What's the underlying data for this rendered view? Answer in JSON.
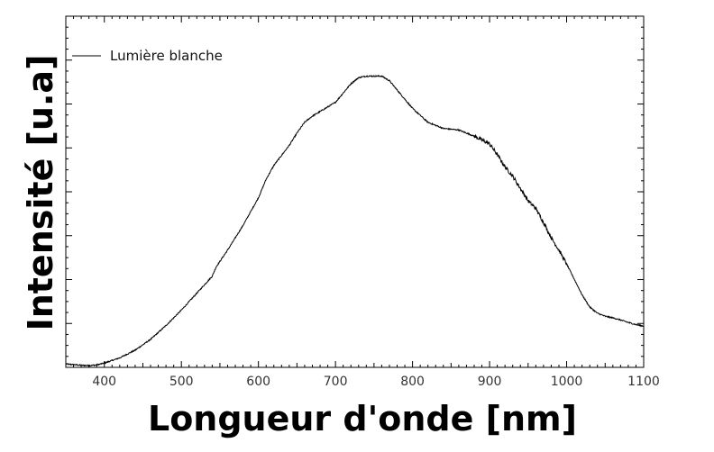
{
  "chart_data": {
    "type": "line",
    "title": "",
    "xlabel": "Longueur d'onde [nm]",
    "ylabel": "Intensité [u.a]",
    "xlim": [
      350,
      1100
    ],
    "ylim": [
      0,
      1
    ],
    "x_ticks": [
      400,
      500,
      600,
      700,
      800,
      900,
      1000,
      1100
    ],
    "y_tick_labels_shown": false,
    "grid": false,
    "legend": "top-left",
    "series": [
      {
        "name": "Lumière blanche",
        "color": "#000000",
        "x": [
          350,
          360,
          370,
          380,
          390,
          400,
          420,
          440,
          460,
          480,
          500,
          520,
          540,
          545,
          560,
          580,
          600,
          610,
          620,
          640,
          650,
          660,
          670,
          680,
          690,
          700,
          710,
          720,
          730,
          740,
          750,
          760,
          770,
          780,
          790,
          800,
          820,
          840,
          860,
          870,
          880,
          900,
          910,
          920,
          930,
          940,
          950,
          960,
          970,
          980,
          990,
          1000,
          1010,
          1020,
          1030,
          1040,
          1050,
          1060,
          1070,
          1080,
          1090,
          1100
        ],
        "y": [
          0.005,
          0.003,
          0.001,
          0.0,
          0.002,
          0.008,
          0.025,
          0.05,
          0.085,
          0.13,
          0.18,
          0.235,
          0.29,
          0.32,
          0.375,
          0.455,
          0.545,
          0.605,
          0.65,
          0.715,
          0.755,
          0.79,
          0.81,
          0.825,
          0.84,
          0.855,
          0.885,
          0.915,
          0.935,
          0.94,
          0.94,
          0.94,
          0.925,
          0.895,
          0.865,
          0.835,
          0.79,
          0.77,
          0.765,
          0.755,
          0.745,
          0.72,
          0.685,
          0.645,
          0.615,
          0.575,
          0.535,
          0.51,
          0.465,
          0.415,
          0.375,
          0.33,
          0.28,
          0.23,
          0.19,
          0.17,
          0.16,
          0.155,
          0.148,
          0.14,
          0.133,
          0.128
        ]
      }
    ]
  }
}
